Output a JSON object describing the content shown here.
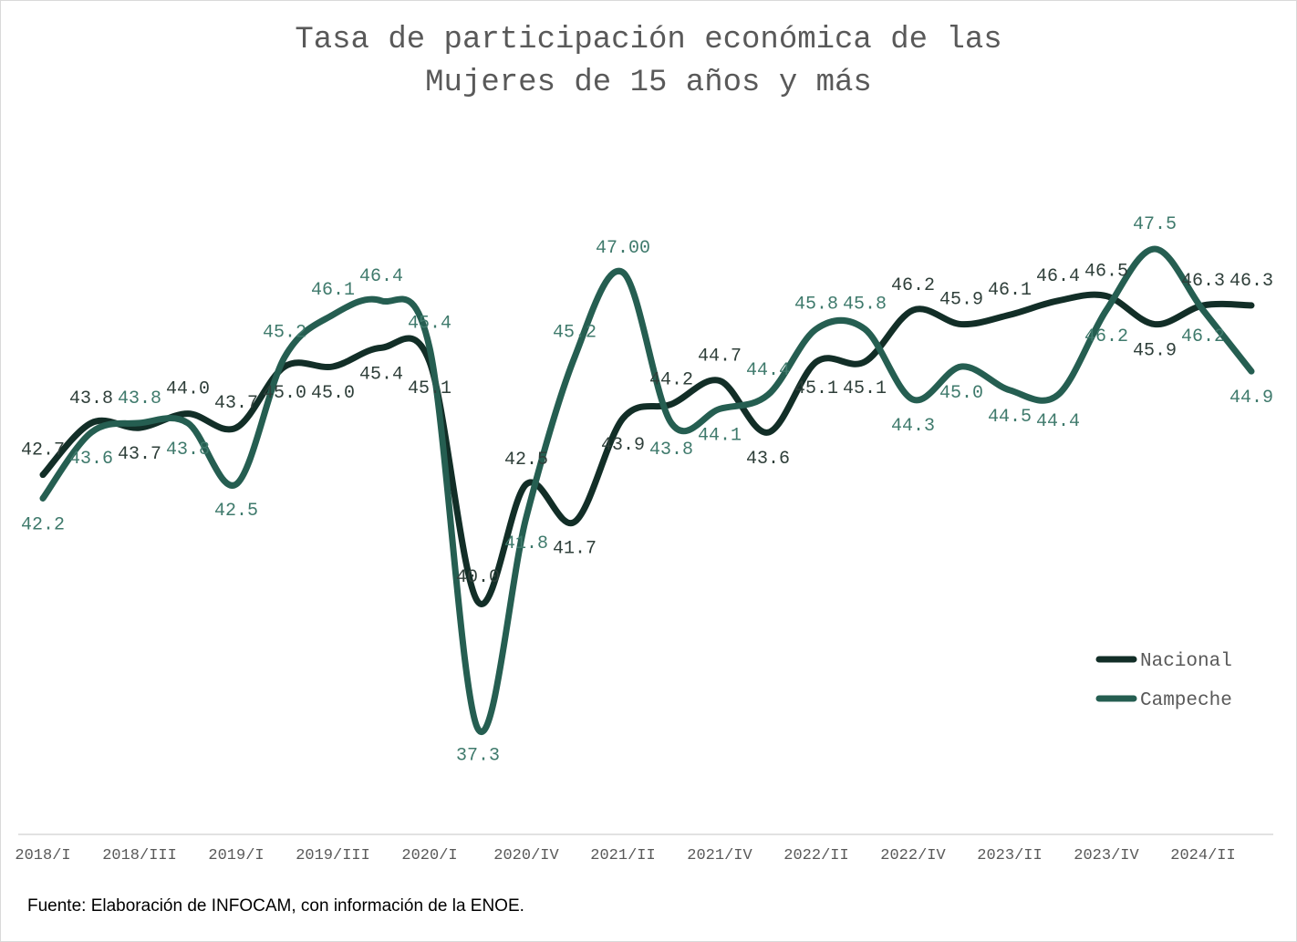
{
  "chart_data": {
    "type": "line",
    "title": [
      "Tasa de participación económica de las",
      "Mujeres de 15 años y más"
    ],
    "source": "Fuente: Elaboración de INFOCAM, con información de la ENOE.",
    "categories": [
      "2018/I",
      null,
      "2018/III",
      null,
      "2019/I",
      null,
      "2019/III",
      null,
      "2020/I",
      null,
      "2020/IV",
      null,
      "2021/II",
      null,
      "2021/IV",
      null,
      "2022/II",
      null,
      "2022/IV",
      null,
      "2023/II",
      null,
      "2023/IV",
      null,
      "2024/II",
      null
    ],
    "ylim": [
      35,
      50
    ],
    "legend": "lower right",
    "series": [
      {
        "name": "Nacional",
        "color": "#122e27",
        "values": [
          42.7,
          43.8,
          43.7,
          44.0,
          43.7,
          45.0,
          45.0,
          45.4,
          45.1,
          40.0,
          42.5,
          41.7,
          43.9,
          44.2,
          44.7,
          43.6,
          45.1,
          45.1,
          46.2,
          45.9,
          46.1,
          46.4,
          46.5,
          45.9,
          46.3,
          46.3
        ],
        "value_labels": [
          "42.7",
          "43.8",
          "43.7",
          "44.0",
          "43.7",
          "45.0",
          "45.0",
          "45.4",
          "45.1",
          "40.0",
          "42.5",
          "41.7",
          "43.9",
          "44.2",
          "44.7",
          "43.6",
          "45.1",
          "45.1",
          "46.2",
          "45.9",
          "46.1",
          "46.4",
          "46.5",
          "45.9",
          "46.3",
          "46.3"
        ]
      },
      {
        "name": "Campeche",
        "color": "#255e51",
        "values": [
          42.2,
          43.6,
          43.8,
          43.8,
          42.5,
          45.2,
          46.1,
          46.4,
          45.4,
          37.3,
          41.8,
          45.2,
          47.0,
          43.8,
          44.1,
          44.4,
          45.8,
          45.8,
          44.3,
          45.0,
          44.5,
          44.4,
          46.2,
          47.5,
          46.2,
          44.9
        ],
        "value_labels": [
          "42.2",
          "43.6",
          "43.8",
          "43.8",
          "42.5",
          "45.2",
          "46.1",
          "46.4",
          "45.4",
          "37.3",
          "41.8",
          "45.2",
          "47.00",
          "43.8",
          "44.1",
          "44.4",
          "45.8",
          "45.8",
          "44.3",
          "45.0",
          "44.5",
          "44.4",
          "46.2",
          "47.5",
          "46.2",
          "44.9"
        ]
      }
    ]
  }
}
